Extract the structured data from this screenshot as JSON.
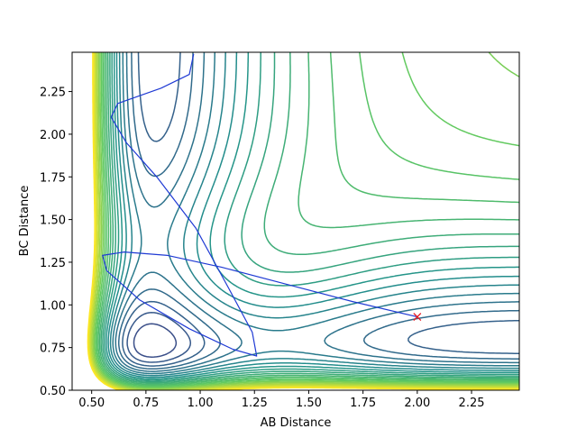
{
  "chart_data": {
    "type": "contour",
    "xlabel": "AB Distance",
    "ylabel": "BC Distance",
    "xlim": [
      0.41,
      2.47
    ],
    "ylim": [
      0.5,
      2.48
    ],
    "xticks": [
      "0.50",
      "0.75",
      "1.00",
      "1.25",
      "1.50",
      "1.75",
      "2.00",
      "2.25"
    ],
    "yticks": [
      "0.50",
      "0.75",
      "1.00",
      "1.25",
      "1.50",
      "1.75",
      "2.00",
      "2.25"
    ],
    "colormap": [
      "#440154",
      "#3b528b",
      "#21918c",
      "#5ec962",
      "#fde725"
    ],
    "contour_levels": 30,
    "trajectory": {
      "color": "#1f3ad4",
      "points": [
        [
          2.0,
          0.93
        ],
        [
          1.7,
          1.02
        ],
        [
          1.4,
          1.12
        ],
        [
          1.1,
          1.22
        ],
        [
          0.85,
          1.29
        ],
        [
          0.65,
          1.31
        ],
        [
          0.55,
          1.29
        ],
        [
          0.57,
          1.2
        ],
        [
          0.72,
          1.03
        ],
        [
          0.95,
          0.86
        ],
        [
          1.15,
          0.74
        ],
        [
          1.26,
          0.7
        ],
        [
          1.24,
          0.84
        ],
        [
          1.13,
          1.1
        ],
        [
          0.98,
          1.45
        ],
        [
          0.8,
          1.75
        ],
        [
          0.66,
          1.95
        ],
        [
          0.59,
          2.1
        ],
        [
          0.62,
          2.18
        ],
        [
          0.82,
          2.27
        ],
        [
          0.95,
          2.35
        ],
        [
          0.97,
          2.47
        ]
      ]
    },
    "marker": {
      "x": 2.0,
      "y": 0.93,
      "symbol": "x",
      "color": "#e8141b"
    }
  }
}
